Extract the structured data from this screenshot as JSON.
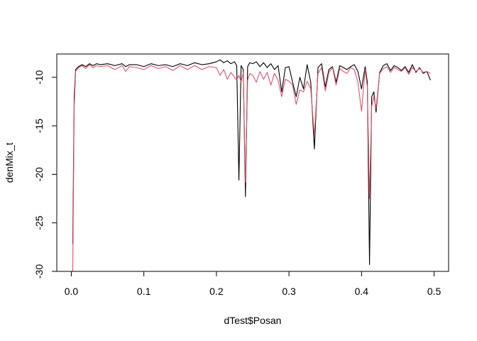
{
  "chart_data": {
    "type": "line",
    "title": "",
    "xlabel": "dTest$Posan",
    "ylabel": "denMix_t",
    "xlim": [
      -0.02,
      0.52
    ],
    "ylim": [
      -30,
      -7.6
    ],
    "xticks": [
      0.0,
      0.1,
      0.2,
      0.3,
      0.4,
      0.5
    ],
    "xtick_labels": [
      "0.0",
      "0.1",
      "0.2",
      "0.3",
      "0.4",
      "0.5"
    ],
    "yticks": [
      -30,
      -25,
      -20,
      -15,
      -10
    ],
    "ytick_labels": [
      "-30",
      "-25",
      "-20",
      "-15",
      "-10"
    ],
    "grid": false,
    "series": [
      {
        "name": "black",
        "color": "#000000",
        "x": [
          0.002,
          0.004,
          0.006,
          0.01,
          0.015,
          0.02,
          0.025,
          0.03,
          0.035,
          0.04,
          0.05,
          0.06,
          0.07,
          0.075,
          0.08,
          0.09,
          0.1,
          0.11,
          0.12,
          0.13,
          0.14,
          0.15,
          0.16,
          0.17,
          0.18,
          0.19,
          0.2,
          0.205,
          0.21,
          0.215,
          0.22,
          0.225,
          0.228,
          0.231,
          0.234,
          0.237,
          0.24,
          0.243,
          0.246,
          0.25,
          0.255,
          0.26,
          0.265,
          0.27,
          0.275,
          0.28,
          0.285,
          0.29,
          0.295,
          0.3,
          0.305,
          0.31,
          0.315,
          0.32,
          0.325,
          0.33,
          0.335,
          0.34,
          0.345,
          0.35,
          0.355,
          0.36,
          0.365,
          0.37,
          0.375,
          0.38,
          0.385,
          0.39,
          0.395,
          0.4,
          0.405,
          0.408,
          0.411,
          0.414,
          0.417,
          0.42,
          0.425,
          0.43,
          0.435,
          0.44,
          0.445,
          0.45,
          0.455,
          0.46,
          0.465,
          0.47,
          0.475,
          0.48,
          0.485,
          0.49,
          0.495
        ],
        "y": [
          -27.2,
          -12.0,
          -9.2,
          -8.9,
          -8.7,
          -8.9,
          -8.6,
          -8.8,
          -8.6,
          -8.7,
          -8.6,
          -8.8,
          -8.6,
          -8.9,
          -8.7,
          -8.7,
          -8.9,
          -8.6,
          -8.8,
          -8.7,
          -8.9,
          -8.6,
          -8.8,
          -8.5,
          -8.7,
          -8.6,
          -8.4,
          -8.2,
          -8.5,
          -8.3,
          -8.6,
          -8.4,
          -8.8,
          -20.6,
          -8.8,
          -9.2,
          -22.3,
          -8.9,
          -8.5,
          -8.6,
          -8.4,
          -8.9,
          -8.5,
          -9.0,
          -8.6,
          -9.2,
          -8.8,
          -11.5,
          -9.0,
          -8.9,
          -10.5,
          -12.0,
          -10.0,
          -11.2,
          -8.7,
          -10.5,
          -17.4,
          -9.0,
          -8.6,
          -11.0,
          -9.2,
          -8.9,
          -10.5,
          -8.8,
          -9.0,
          -9.2,
          -8.9,
          -8.7,
          -9.4,
          -11.2,
          -8.9,
          -10.5,
          -29.3,
          -12.0,
          -11.5,
          -13.6,
          -9.5,
          -8.8,
          -8.6,
          -9.3,
          -8.8,
          -9.0,
          -9.3,
          -8.9,
          -9.5,
          -8.7,
          -9.5,
          -9.0,
          -9.6,
          -9.4,
          -10.3
        ]
      },
      {
        "name": "red",
        "color": "#DF536B",
        "x": [
          0.002,
          0.004,
          0.006,
          0.01,
          0.015,
          0.02,
          0.025,
          0.03,
          0.035,
          0.04,
          0.05,
          0.06,
          0.07,
          0.075,
          0.08,
          0.09,
          0.1,
          0.11,
          0.12,
          0.13,
          0.14,
          0.15,
          0.16,
          0.17,
          0.18,
          0.19,
          0.2,
          0.205,
          0.21,
          0.215,
          0.22,
          0.225,
          0.228,
          0.231,
          0.234,
          0.237,
          0.24,
          0.243,
          0.246,
          0.25,
          0.255,
          0.26,
          0.265,
          0.27,
          0.275,
          0.28,
          0.285,
          0.29,
          0.295,
          0.3,
          0.305,
          0.31,
          0.315,
          0.32,
          0.325,
          0.33,
          0.335,
          0.34,
          0.345,
          0.35,
          0.355,
          0.36,
          0.365,
          0.37,
          0.375,
          0.38,
          0.385,
          0.39,
          0.395,
          0.4,
          0.405,
          0.408,
          0.411,
          0.414,
          0.417,
          0.42,
          0.425,
          0.43,
          0.435,
          0.44,
          0.445,
          0.45,
          0.455,
          0.46,
          0.465,
          0.47,
          0.475,
          0.48,
          0.485,
          0.49,
          0.495
        ],
        "y": [
          -30.0,
          -13.0,
          -9.4,
          -9.0,
          -8.8,
          -9.1,
          -8.7,
          -9.0,
          -8.8,
          -8.9,
          -8.8,
          -9.2,
          -8.8,
          -9.4,
          -8.9,
          -9.0,
          -9.2,
          -8.8,
          -9.1,
          -8.9,
          -9.3,
          -8.8,
          -9.2,
          -8.8,
          -9.2,
          -8.9,
          -9.0,
          -9.8,
          -9.2,
          -10.2,
          -9.5,
          -10.0,
          -10.3,
          -9.8,
          -10.5,
          -9.5,
          -20.8,
          -10.3,
          -9.6,
          -9.8,
          -10.5,
          -9.4,
          -10.2,
          -9.5,
          -10.8,
          -9.6,
          -10.3,
          -12.0,
          -10.2,
          -10.4,
          -10.8,
          -12.8,
          -11.3,
          -11.5,
          -10.4,
          -11.2,
          -16.0,
          -9.6,
          -9.0,
          -11.4,
          -9.5,
          -9.0,
          -10.8,
          -9.1,
          -9.4,
          -9.6,
          -9.0,
          -9.2,
          -10.5,
          -13.5,
          -9.2,
          -11.0,
          -22.5,
          -13.0,
          -12.0,
          -13.2,
          -9.6,
          -9.1,
          -8.9,
          -9.5,
          -9.0,
          -9.2,
          -9.4,
          -9.0,
          -9.7,
          -9.0,
          -9.4,
          -9.1,
          -9.5,
          -9.4,
          -9.6
        ]
      }
    ]
  }
}
